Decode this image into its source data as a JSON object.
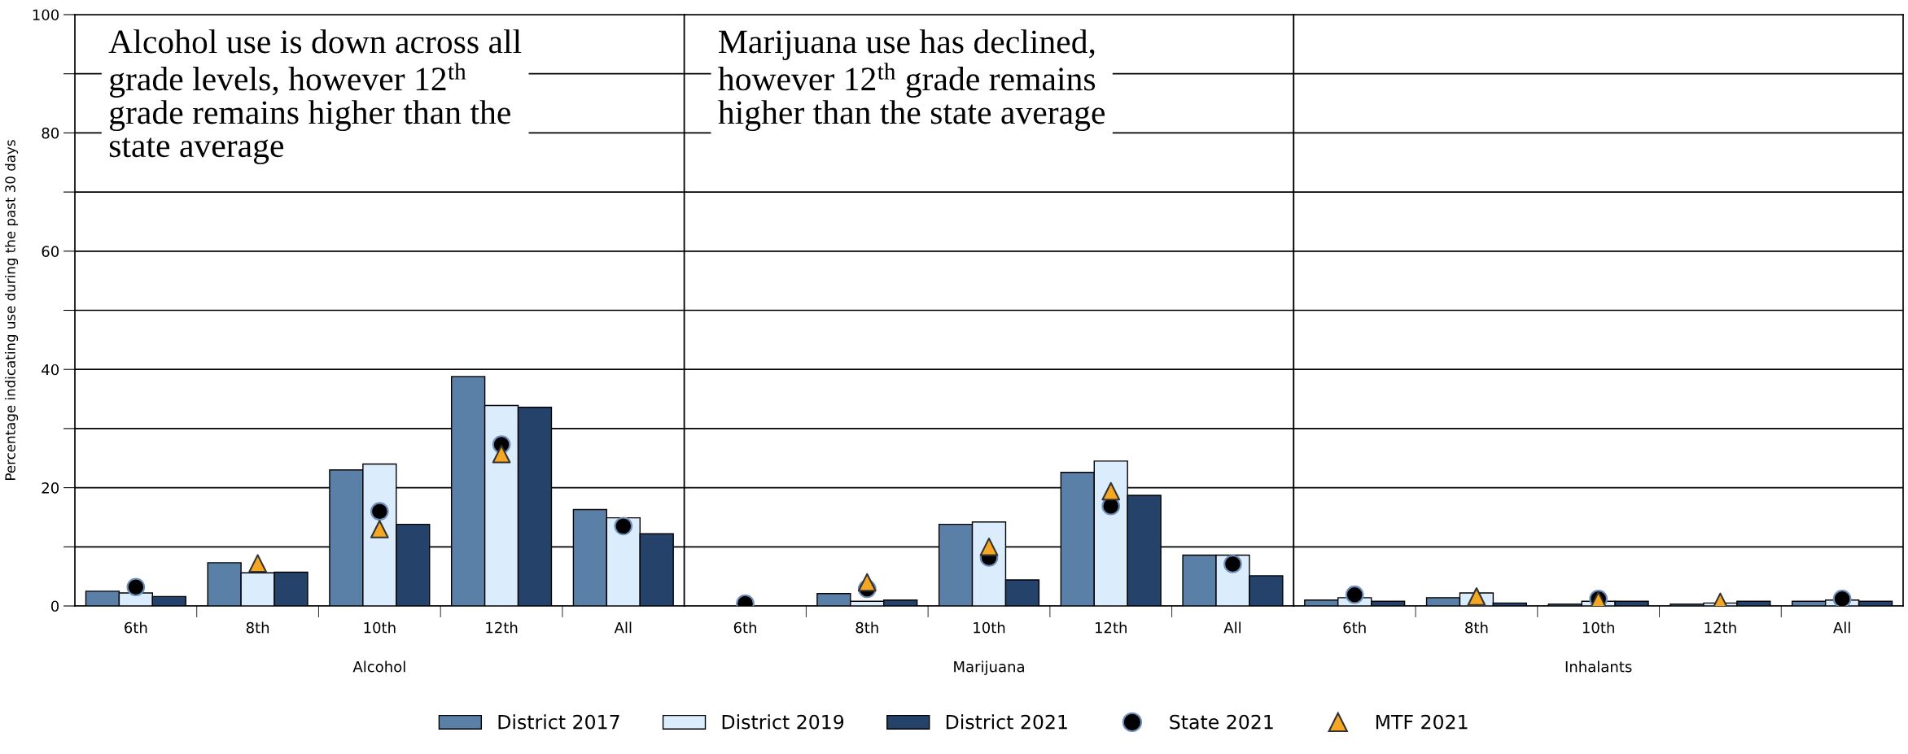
{
  "chart_data": [
    {
      "type": "bar",
      "xlabel": "Alcohol",
      "ylabel": "Percentage indicating use during the past 30 days",
      "categories": [
        "6th",
        "8th",
        "10th",
        "12th",
        "All"
      ],
      "ylim": [
        0,
        100
      ],
      "yticks": [
        0,
        {
          "value": 10,
          "label": null
        },
        20,
        {
          "value": 30,
          "label": null
        },
        40,
        {
          "value": 50,
          "label": null
        },
        60,
        {
          "value": 70,
          "label": null
        },
        80,
        {
          "value": 90,
          "label": null
        },
        100
      ],
      "grid": "y",
      "legend": "bottom",
      "annotations": [
        "Alcohol use is down across all\ngrade levels, however 12$^{th}$\ngrade remains higher than the\nstate average"
      ],
      "series": [
        {
          "name": "District 2017",
          "type": "bar",
          "color": "#5b80a8",
          "values": [
            2.5,
            7.3,
            23,
            38.8,
            16.3
          ]
        },
        {
          "name": "District 2019",
          "type": "bar",
          "color": "#dbedfd",
          "values": [
            2.2,
            5.6,
            24,
            33.9,
            14.9
          ]
        },
        {
          "name": "District 2021",
          "type": "bar",
          "color": "#25426b",
          "values": [
            1.6,
            5.7,
            13.8,
            33.6,
            12.2
          ]
        },
        {
          "name": "State 2021",
          "type": "scatter",
          "marker": "circle",
          "color": "#000000",
          "x": [
            "6th",
            "8th",
            "10th",
            "12th",
            "All"
          ],
          "values": [
            3.2,
            null,
            16,
            27.3,
            13.5
          ]
        },
        {
          "name": "MTF 2021",
          "type": "scatter",
          "marker": "triangle",
          "color": "#f5a623",
          "x": [
            "6th",
            "8th",
            "10th",
            "12th",
            "All"
          ],
          "values": [
            null,
            7.2,
            13,
            25.7,
            null
          ]
        }
      ]
    },
    {
      "type": "bar",
      "xlabel": "Marijuana",
      "categories": [
        "6th",
        "8th",
        "10th",
        "12th",
        "All"
      ],
      "ylim": [
        0,
        100
      ],
      "yticks": [
        0,
        {
          "value": 10,
          "label": null
        },
        20,
        {
          "value": 30,
          "label": null
        },
        40,
        {
          "value": 50,
          "label": null
        },
        60,
        {
          "value": 70,
          "label": null
        },
        80,
        {
          "value": 90,
          "label": null
        },
        100
      ],
      "grid": "y",
      "tick_labels": "x",
      "annotations": [
        "Marijuana use has declined,\nhowever 12$^{th}$ grade remains\nhigher than the state average"
      ],
      "series": [
        {
          "type": "bar",
          "color": "#5b80a8",
          "values": [
            null,
            2.1,
            13.8,
            22.6,
            8.6
          ]
        },
        {
          "type": "bar",
          "color": "#dbedfd",
          "values": [
            null,
            0.8,
            14.2,
            24.5,
            8.6
          ]
        },
        {
          "type": "bar",
          "color": "#25426b",
          "values": [
            null,
            1.0,
            4.4,
            18.7,
            5.1
          ]
        },
        {
          "type": "scatter",
          "marker": "circle",
          "color": "#000000",
          "x": [
            "6th",
            "8th",
            "10th",
            "12th",
            "All"
          ],
          "values": [
            0.4,
            2.9,
            8.2,
            16.9,
            7.1
          ]
        },
        {
          "type": "scatter",
          "marker": "triangle",
          "color": "#f5a623",
          "x": [
            "6th",
            "8th",
            "10th",
            "12th",
            "All"
          ],
          "values": [
            null,
            4.0,
            10,
            19.4,
            null
          ]
        }
      ]
    },
    {
      "type": "bar",
      "xlabel": "Inhalants",
      "categories": [
        "6th",
        "8th",
        "10th",
        "12th",
        "All"
      ],
      "ylim": [
        0,
        100
      ],
      "yticks": [
        0,
        {
          "value": 10,
          "label": null
        },
        20,
        {
          "value": 30,
          "label": null
        },
        40,
        {
          "value": 50,
          "label": null
        },
        60,
        {
          "value": 70,
          "label": null
        },
        80,
        {
          "value": 90,
          "label": null
        },
        100
      ],
      "grid": "y",
      "tick_labels": "x",
      "series": [
        {
          "type": "bar",
          "color": "#5b80a8",
          "values": [
            1.0,
            1.4,
            0.3,
            0.3,
            0.8
          ]
        },
        {
          "type": "bar",
          "color": "#dbedfd",
          "values": [
            1.4,
            2.2,
            0.8,
            0.5,
            1.0
          ]
        },
        {
          "type": "bar",
          "color": "#25426b",
          "values": [
            0.8,
            0.5,
            0.8,
            0.8,
            0.8
          ]
        },
        {
          "type": "scatter",
          "marker": "circle",
          "color": "#000000",
          "x": [
            "6th",
            "8th",
            "10th",
            "12th",
            "All"
          ],
          "values": [
            1.9,
            null,
            1.2,
            null,
            1.2
          ]
        },
        {
          "type": "scatter",
          "marker": "triangle",
          "color": "#f5a623",
          "x": [
            "6th",
            "8th",
            "10th",
            "12th",
            "All"
          ],
          "values": [
            null,
            1.6,
            0.9,
            0.7,
            null
          ]
        }
      ]
    }
  ]
}
